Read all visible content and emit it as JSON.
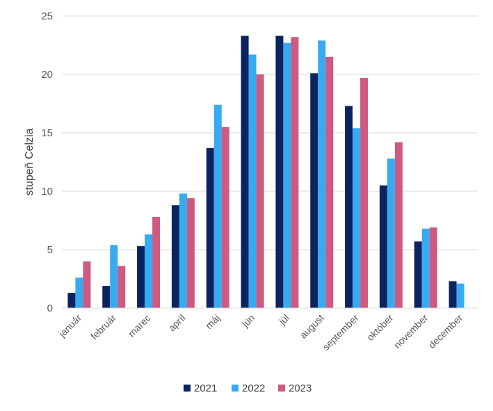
{
  "chart_data": {
    "type": "bar",
    "title": "",
    "xlabel": "",
    "ylabel": "stupeň Celzia",
    "ylim": [
      0,
      25
    ],
    "yticks": [
      0,
      5,
      10,
      15,
      20,
      25
    ],
    "grid": true,
    "legend_position": "bottom",
    "categories": [
      "január",
      "február",
      "marec",
      "apríl",
      "máj",
      "jún",
      "júl",
      "august",
      "september",
      "október",
      "november",
      "december"
    ],
    "series": [
      {
        "name": "2021",
        "color": "#0b2460",
        "values": [
          1.3,
          1.9,
          5.3,
          8.8,
          13.7,
          23.3,
          23.3,
          20.1,
          17.3,
          10.5,
          5.7,
          2.3
        ]
      },
      {
        "name": "2022",
        "color": "#38aaf2",
        "values": [
          2.6,
          5.4,
          6.3,
          9.8,
          17.4,
          21.7,
          22.7,
          22.9,
          15.4,
          12.8,
          6.8,
          2.1
        ]
      },
      {
        "name": "2023",
        "color": "#cc5a81",
        "values": [
          4.0,
          3.6,
          7.8,
          9.4,
          15.5,
          20.0,
          23.2,
          21.5,
          19.7,
          14.2,
          6.9,
          null
        ]
      }
    ]
  }
}
